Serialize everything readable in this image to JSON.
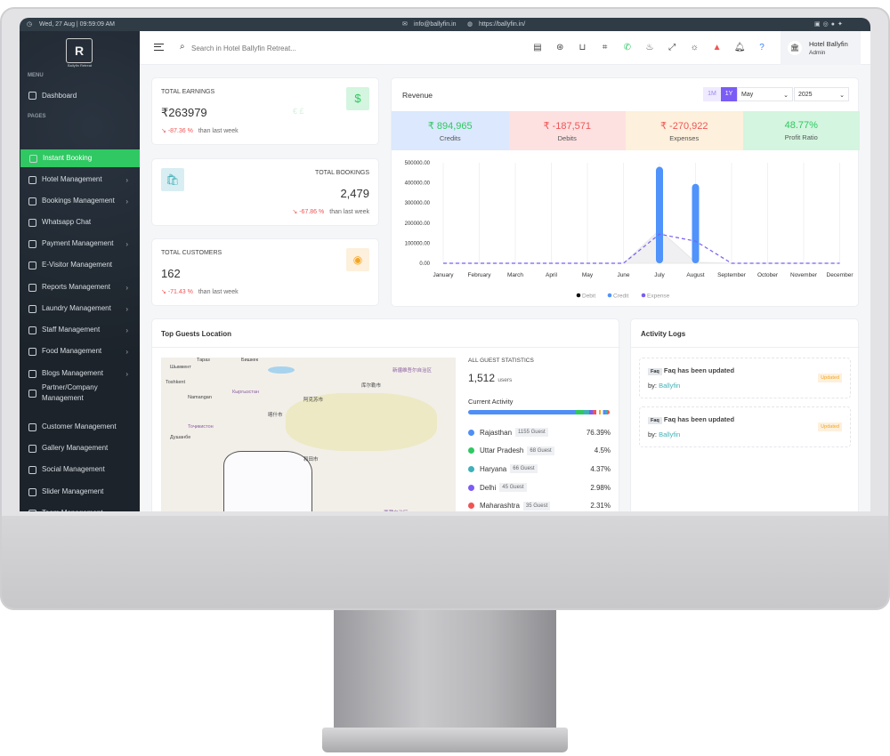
{
  "topbar": {
    "datetime": "Wed, 27 Aug | 09:59:09 AM",
    "email": "info@ballyfin.in",
    "website": "https://ballyfin.in/",
    "social_icons": [
      "youtube-icon",
      "instagram-icon",
      "facebook-icon",
      "twitter-icon"
    ]
  },
  "sidebar": {
    "logo_text": "Ballyfin Retreat",
    "menu_label": "MENU",
    "pages_label": "PAGES",
    "dashboard": "Dashboard",
    "items": [
      {
        "label": "Instant Booking",
        "active": true,
        "chevron": false
      },
      {
        "label": "Hotel Management",
        "chevron": true
      },
      {
        "label": "Bookings Management",
        "chevron": true
      },
      {
        "label": "Whatsapp Chat",
        "chevron": false
      },
      {
        "label": "Payment Management",
        "chevron": true
      },
      {
        "label": "E-Visitor Management",
        "chevron": false
      },
      {
        "label": "Reports Management",
        "chevron": true
      },
      {
        "label": "Laundry Management",
        "chevron": true
      },
      {
        "label": "Staff Management",
        "chevron": true
      },
      {
        "label": "Food Management",
        "chevron": true
      },
      {
        "label": "Blogs Management",
        "chevron": true
      },
      {
        "label": "Partner/Company Management",
        "chevron": false
      },
      {
        "label": "Customer Management",
        "chevron": false
      },
      {
        "label": "Gallery Management",
        "chevron": false
      },
      {
        "label": "Social Management",
        "chevron": false
      },
      {
        "label": "Slider Management",
        "chevron": false
      },
      {
        "label": "Team Management",
        "chevron": false
      }
    ]
  },
  "header": {
    "search_placeholder": "Search in Hotel Ballyfin Retreat...",
    "profile_name": "Hotel Ballyfin",
    "profile_role": "Admin",
    "icons": [
      "invoice-icon",
      "money-icon",
      "basket-icon",
      "scan-icon",
      "whatsapp-icon",
      "cake-icon",
      "fullscreen-icon",
      "sun-icon",
      "alert-icon",
      "bell-icon",
      "help-icon"
    ]
  },
  "stats": {
    "earnings": {
      "label": "TOTAL EARNINGS",
      "value": "₹263979",
      "change": "-87.36 %",
      "suffix": "than last week"
    },
    "bookings": {
      "label": "TOTAL BOOKINGS",
      "value": "2,479",
      "change": "-67.86 %",
      "suffix": "than last week"
    },
    "customers": {
      "label": "TOTAL CUSTOMERS",
      "value": "162",
      "change": "-71.43 %",
      "suffix": "than last week"
    }
  },
  "revenue": {
    "title": "Revenue",
    "range_1m": "1M",
    "range_1y": "1Y",
    "month": "May",
    "year": "2025",
    "tiles": [
      {
        "value": "₹ 894,965",
        "label": "Credits",
        "color": "#2fc862",
        "bg": "#dbe8fd"
      },
      {
        "value": "₹ -187,571",
        "label": "Debits",
        "color": "#f05454",
        "bg": "#fde1e1"
      },
      {
        "value": "₹ -270,922",
        "label": "Expenses",
        "color": "#f05454",
        "bg": "#fdf0dc"
      },
      {
        "value": "48.77%",
        "label": "Profit Ratio",
        "color": "#2fc862",
        "bg": "#d4f5df"
      }
    ]
  },
  "chart_data": {
    "type": "bar",
    "categories": [
      "January",
      "February",
      "March",
      "April",
      "May",
      "June",
      "July",
      "August",
      "September",
      "October",
      "November",
      "December"
    ],
    "ylim": [
      0,
      500000
    ],
    "yticks": [
      "0.00",
      "100000.00",
      "200000.00",
      "300000.00",
      "400000.00",
      "500000.00"
    ],
    "legend_placement": "bottom",
    "series": [
      {
        "name": "Debit",
        "type": "area",
        "color": "#222222",
        "values": [
          0,
          0,
          0,
          0,
          0,
          0,
          165000,
          5000,
          0,
          0,
          0,
          0
        ]
      },
      {
        "name": "Credit",
        "type": "bar",
        "color": "#4f93fb",
        "values": [
          0,
          0,
          0,
          0,
          0,
          0,
          480000,
          395000,
          0,
          0,
          0,
          0
        ]
      },
      {
        "name": "Expense",
        "type": "line-dashed",
        "color": "#7b5cf5",
        "values": [
          0,
          0,
          0,
          0,
          0,
          0,
          145000,
          110000,
          0,
          0,
          0,
          0
        ]
      }
    ]
  },
  "guests": {
    "title": "Top Guests Location",
    "stats_label": "ALL GUEST STATISTICS",
    "total": "1,512",
    "total_unit": "users",
    "activity_label": "Current Activity",
    "map_labels": [
      "Шымкент",
      "Toshkent",
      "Namangan",
      "Кыргызстан",
      "Тоҷикистон",
      "Душанбе",
      "阿克苏市",
      "喀什市",
      "和田市",
      "库尔勒市",
      "新疆维吾尔自治区",
      "西藏自治区",
      "Тараз",
      "Бишкек"
    ],
    "locations": [
      {
        "name": "Rajasthan",
        "guests": "1155 Guest",
        "pct": "76.39%",
        "color": "#4f8ef7",
        "share": 76.39
      },
      {
        "name": "Uttar Pradesh",
        "guests": "68 Guest",
        "pct": "4.5%",
        "color": "#2fc862",
        "share": 4.5
      },
      {
        "name": "Haryana",
        "guests": "66 Guest",
        "pct": "4.37%",
        "color": "#3fb0b8",
        "share": 4.37
      },
      {
        "name": "Delhi",
        "guests": "45 Guest",
        "pct": "2.98%",
        "color": "#7b5cf5",
        "share": 2.98
      },
      {
        "name": "Maharashtra",
        "guests": "35 Guest",
        "pct": "2.31%",
        "color": "#f05454",
        "share": 2.31
      }
    ]
  },
  "activity": {
    "title": "Activity Logs",
    "logs": [
      {
        "tag": "Faq",
        "text": "Faq has been updated",
        "by_label": "by:",
        "by": "Ballyfin",
        "status": "Updated"
      },
      {
        "tag": "Faq",
        "text": "Faq has been updated",
        "by_label": "by:",
        "by": "Ballyfin",
        "status": "Updated"
      }
    ]
  }
}
